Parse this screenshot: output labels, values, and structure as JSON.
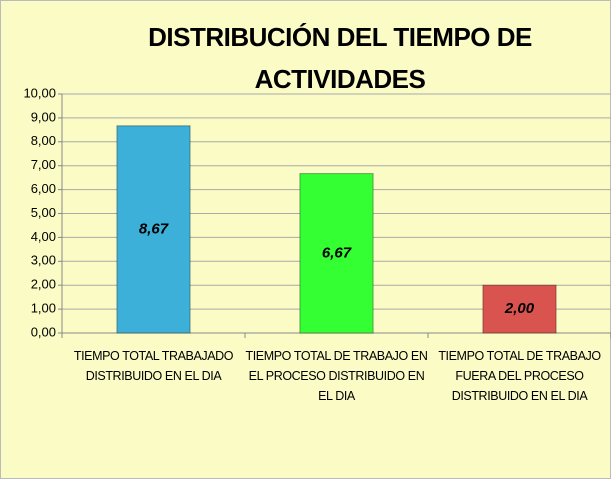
{
  "chart_data": {
    "type": "bar",
    "title": "DISTRIBUCIÓN DEL TIEMPO DE ACTIVIDADES",
    "categories": [
      "TIEMPO TOTAL TRABAJADO DISTRIBUIDO EN EL DIA",
      "TIEMPO TOTAL DE TRABAJO EN EL PROCESO DISTRIBUIDO EN EL DIA",
      "TIEMPO TOTAL DE TRABAJO FUERA DEL PROCESO DISTRIBUIDO EN EL DIA"
    ],
    "values": [
      8.67,
      6.67,
      2.0
    ],
    "value_labels": [
      "8,67",
      "6,67",
      "2,00"
    ],
    "colors": [
      "#3cb0d9",
      "#33ff33",
      "#d9534f"
    ],
    "ylim": [
      0,
      10
    ],
    "yticks": [
      {
        "value": 0,
        "label": "0,00"
      },
      {
        "value": 1,
        "label": "1,00"
      },
      {
        "value": 2,
        "label": "2,00"
      },
      {
        "value": 3,
        "label": "3,00"
      },
      {
        "value": 4,
        "label": "4,00"
      },
      {
        "value": 5,
        "label": "5,00"
      },
      {
        "value": 6,
        "label": "6,00"
      },
      {
        "value": 7,
        "label": "7,00"
      },
      {
        "value": 8,
        "label": "8,00"
      },
      {
        "value": 9,
        "label": "9,00"
      },
      {
        "value": 10,
        "label": "10,00"
      }
    ],
    "grid": true
  }
}
